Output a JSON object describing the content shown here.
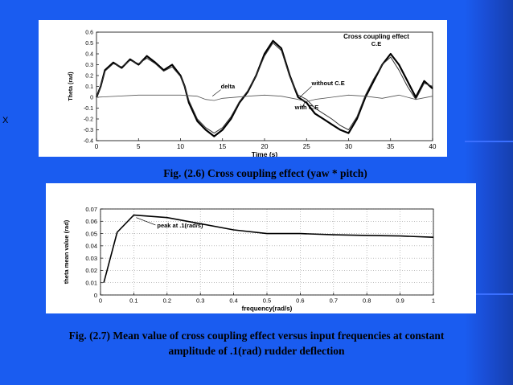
{
  "side_char": "X",
  "captions": {
    "fig1": "Fig. (2.6) Cross coupling effect (yaw *  pitch)",
    "fig2_line1": "Fig. (2.7) Mean value of cross coupling effect versus input frequencies at constant",
    "fig2_line2": "amplitude of .1(rad) rudder deflection"
  },
  "chart_data": [
    {
      "type": "line",
      "title": "Cross coupling effect",
      "subtitle": "C.E",
      "xlabel": "Time (s)",
      "ylabel": "Theta (rad)",
      "xlim": [
        0,
        40
      ],
      "ylim": [
        -0.4,
        0.6
      ],
      "xticks": [
        "0",
        "5",
        "10",
        "15",
        "20",
        "25",
        "30",
        "35",
        "40"
      ],
      "yticks": [
        "-0.4",
        "-0.3",
        "-0.2",
        "-0.1",
        "0",
        "0.1",
        "0.2",
        "0.3",
        "0.4",
        "0.5",
        "0.6"
      ],
      "grid": false,
      "annotations": [
        {
          "text": "delta",
          "x": 14.8,
          "y": 0.08
        },
        {
          "text": "without C.E",
          "x": 25.6,
          "y": 0.11
        },
        {
          "text": "with C.E",
          "x": 23.6,
          "y": -0.11
        }
      ],
      "series": [
        {
          "name": "with C.E",
          "x": [
            0,
            0.5,
            1,
            2,
            3,
            4,
            5,
            6,
            7,
            8,
            9,
            10,
            10.5,
            11,
            12,
            13,
            14,
            15,
            16,
            17,
            18,
            19,
            20,
            21,
            22,
            23,
            24,
            25,
            26,
            27,
            28,
            29,
            30,
            31,
            32,
            33,
            34,
            35,
            36,
            37,
            38,
            39,
            40
          ],
          "y": [
            0,
            0.1,
            0.25,
            0.32,
            0.27,
            0.35,
            0.3,
            0.38,
            0.32,
            0.25,
            0.3,
            0.2,
            0.1,
            -0.05,
            -0.22,
            -0.3,
            -0.36,
            -0.3,
            -0.2,
            -0.05,
            0.05,
            0.2,
            0.4,
            0.52,
            0.45,
            0.2,
            0,
            -0.05,
            -0.15,
            -0.2,
            -0.25,
            -0.3,
            -0.33,
            -0.2,
            0,
            0.15,
            0.3,
            0.4,
            0.3,
            0.15,
            0,
            0.15,
            0.08
          ]
        },
        {
          "name": "without C.E",
          "x": [
            0,
            0.5,
            1,
            2,
            3,
            4,
            5,
            6,
            7,
            8,
            9,
            10,
            10.5,
            11,
            12,
            13,
            14,
            15,
            16,
            17,
            18,
            19,
            20,
            21,
            22,
            23,
            24,
            25,
            26,
            27,
            28,
            29,
            30,
            31,
            32,
            33,
            34,
            35,
            36,
            37,
            38,
            39,
            40
          ],
          "y": [
            0,
            0.1,
            0.24,
            0.31,
            0.28,
            0.34,
            0.31,
            0.36,
            0.31,
            0.24,
            0.28,
            0.19,
            0.1,
            -0.03,
            -0.2,
            -0.28,
            -0.33,
            -0.28,
            -0.18,
            -0.04,
            0.06,
            0.2,
            0.38,
            0.5,
            0.43,
            0.19,
            0.02,
            -0.02,
            -0.1,
            -0.15,
            -0.2,
            -0.26,
            -0.3,
            -0.18,
            0.02,
            0.17,
            0.3,
            0.37,
            0.25,
            0.1,
            -0.02,
            0.13,
            0.1
          ]
        },
        {
          "name": "delta",
          "x": [
            0,
            5,
            10,
            12,
            13,
            14,
            15,
            18,
            20,
            22,
            24,
            25,
            26,
            28,
            30,
            32,
            34,
            36,
            38,
            40
          ],
          "y": [
            0,
            0.02,
            0.02,
            0.01,
            -0.02,
            -0.03,
            -0.01,
            0.01,
            0.02,
            0.01,
            -0.02,
            -0.04,
            -0.02,
            0,
            0.02,
            0.01,
            -0.01,
            0.02,
            -0.02,
            0.01
          ]
        }
      ]
    },
    {
      "type": "line",
      "xlabel": "frequency(rad/s)",
      "ylabel": "theta mean value (rad)",
      "xlim": [
        0,
        1
      ],
      "ylim": [
        0,
        0.07
      ],
      "xticks": [
        "0",
        "0.1",
        "0.2",
        "0.3",
        "0.4",
        "0.5",
        "0.6",
        "0.7",
        "0.8",
        "0.9",
        "1"
      ],
      "yticks": [
        "0",
        "0.01",
        "0.02",
        "0.03",
        "0.04",
        "0.05",
        "0.06",
        "0.07"
      ],
      "grid": true,
      "annotations": [
        {
          "text": "peak at .1(rad/s)",
          "x": 0.17,
          "y": 0.055,
          "target": [
            0.1,
            0.065
          ]
        }
      ],
      "series": [
        {
          "x": [
            0.01,
            0.05,
            0.1,
            0.2,
            0.3,
            0.4,
            0.5,
            0.6,
            0.7,
            0.8,
            0.9,
            1.0
          ],
          "y": [
            0.01,
            0.051,
            0.065,
            0.063,
            0.058,
            0.053,
            0.05,
            0.05,
            0.049,
            0.0485,
            0.048,
            0.047
          ]
        }
      ]
    }
  ]
}
